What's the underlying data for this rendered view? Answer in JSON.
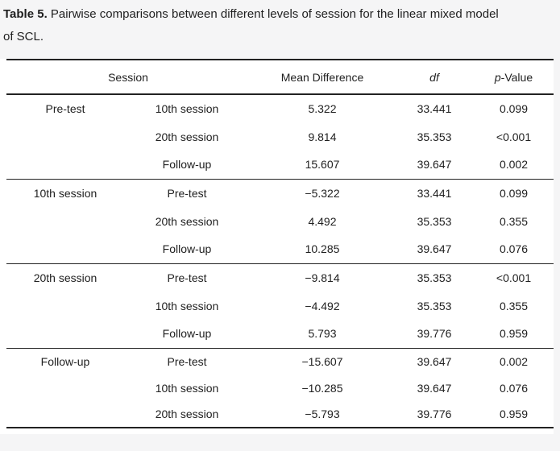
{
  "caption": {
    "label": "Table 5.",
    "text_line1": "Pairwise comparisons between different levels of session for the linear mixed model",
    "text_line2": "of SCL."
  },
  "table": {
    "headers": {
      "session": "Session",
      "mean_difference": "Mean Difference",
      "df": "df",
      "p_italic": "p",
      "p_rest": "-Value"
    },
    "groups": [
      {
        "session": "Pre-test",
        "rows": [
          {
            "comparison": "10th session",
            "mean_difference": "5.322",
            "df": "33.441",
            "p_value": "0.099"
          },
          {
            "comparison": "20th session",
            "mean_difference": "9.814",
            "df": "35.353",
            "p_value": "<0.001"
          },
          {
            "comparison": "Follow-up",
            "mean_difference": "15.607",
            "df": "39.647",
            "p_value": "0.002"
          }
        ]
      },
      {
        "session": "10th session",
        "rows": [
          {
            "comparison": "Pre-test",
            "mean_difference": "−5.322",
            "df": "33.441",
            "p_value": "0.099"
          },
          {
            "comparison": "20th session",
            "mean_difference": "4.492",
            "df": "35.353",
            "p_value": "0.355"
          },
          {
            "comparison": "Follow-up",
            "mean_difference": "10.285",
            "df": "39.647",
            "p_value": "0.076"
          }
        ]
      },
      {
        "session": "20th session",
        "rows": [
          {
            "comparison": "Pre-test",
            "mean_difference": "−9.814",
            "df": "35.353",
            "p_value": "<0.001"
          },
          {
            "comparison": "10th session",
            "mean_difference": "−4.492",
            "df": "35.353",
            "p_value": "0.355"
          },
          {
            "comparison": "Follow-up",
            "mean_difference": "5.793",
            "df": "39.776",
            "p_value": "0.959"
          }
        ]
      },
      {
        "session": "Follow-up",
        "rows": [
          {
            "comparison": "Pre-test",
            "mean_difference": "−15.607",
            "df": "39.647",
            "p_value": "0.002"
          },
          {
            "comparison": "10th session",
            "mean_difference": "−10.285",
            "df": "39.647",
            "p_value": "0.076"
          },
          {
            "comparison": "20th session",
            "mean_difference": "−5.793",
            "df": "39.776",
            "p_value": "0.959"
          }
        ]
      }
    ]
  },
  "colors": {
    "page_background": "#f5f5f6",
    "table_background": "#ffffff",
    "text": "#212121",
    "rule": "#222222"
  }
}
